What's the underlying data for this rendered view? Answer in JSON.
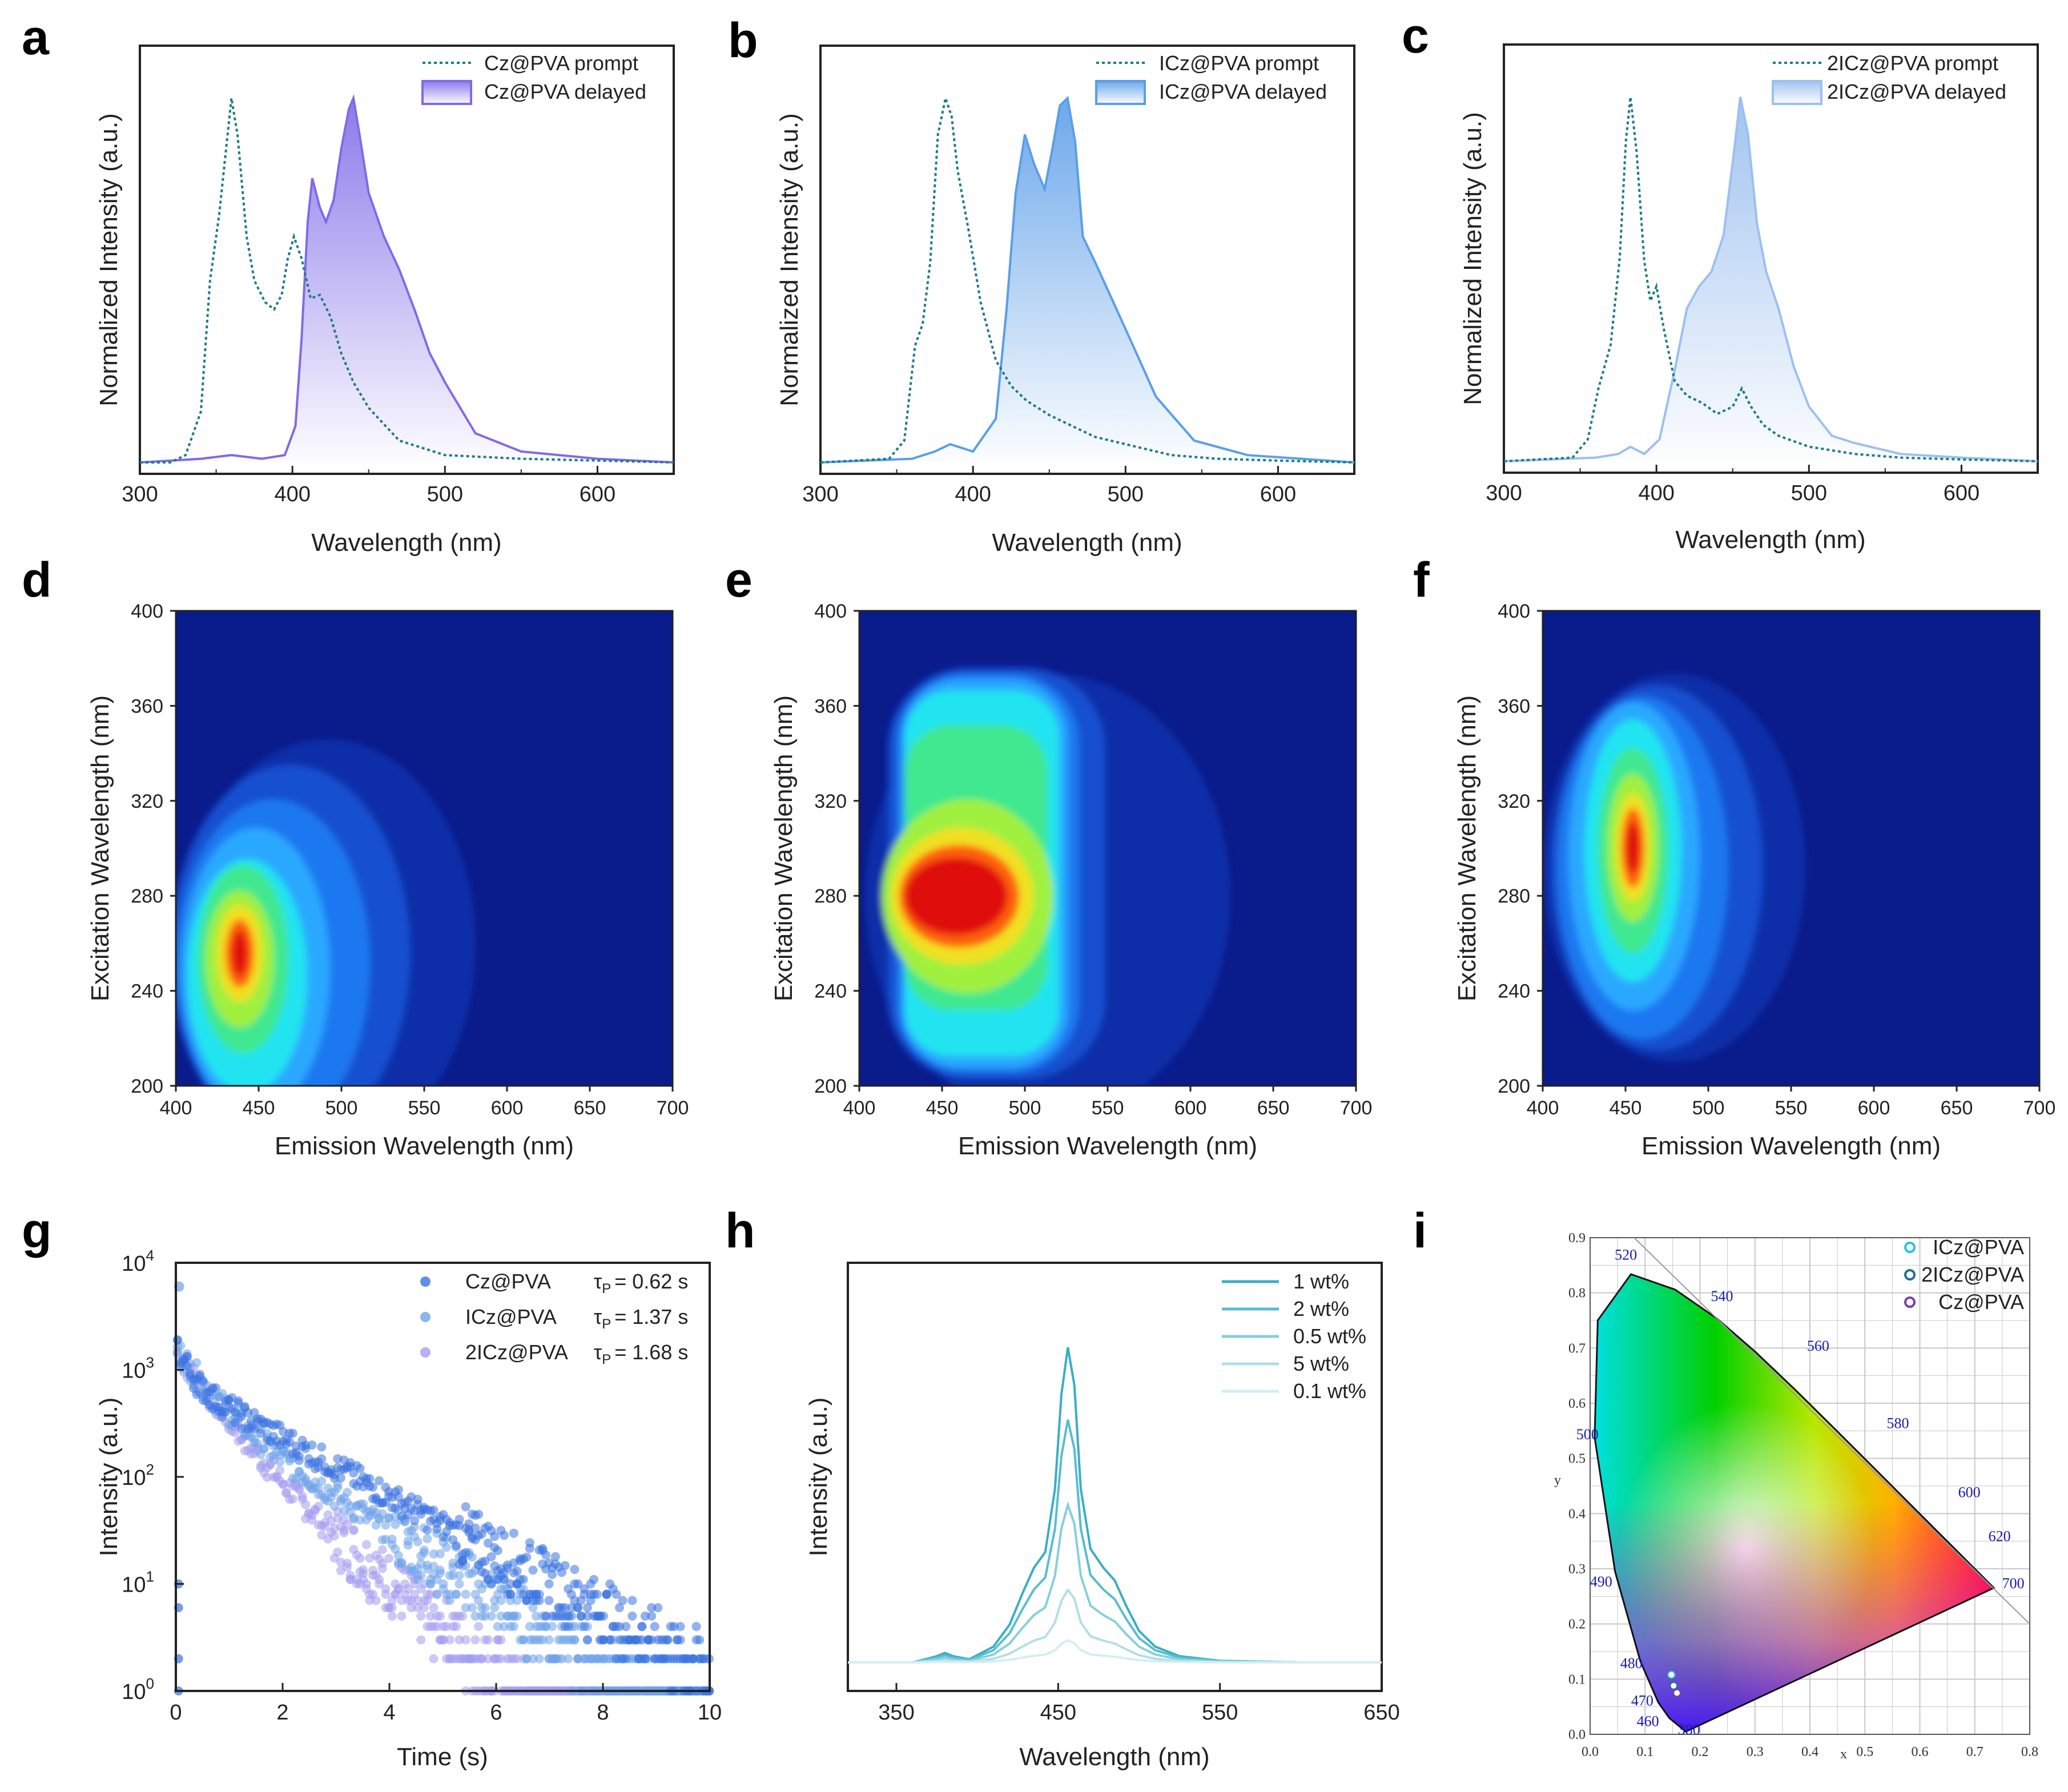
{
  "figure_panels": [
    "a",
    "b",
    "c",
    "d",
    "e",
    "f",
    "g",
    "h",
    "i"
  ],
  "colors": {
    "prompt": "#1e7b86",
    "cz": "#7f6be8",
    "icz": "#5b9ee8",
    "twoicz": "#9cc0ef",
    "map_bg": "#0a1b8c",
    "decay_cz": "#3a73e0",
    "decay_icz": "#6fa3ea",
    "decay_2icz": "#a39cf0",
    "h_series": [
      "#3aaec4",
      "#58bdd0",
      "#86cfdc",
      "#b0dfe8",
      "#d3eef3"
    ]
  },
  "chart_data": [
    {
      "panel": "a",
      "type": "area",
      "xlabel": "Wavelength (nm)",
      "ylabel": "Normalized Intensity (a.u.)",
      "xlim": [
        300,
        650
      ],
      "xticks": [
        300,
        400,
        500,
        600
      ],
      "ylim": [
        0,
        1.05
      ],
      "series": [
        {
          "name": "Cz@PVA prompt",
          "style": "dotted",
          "x": [
            300,
            320,
            330,
            340,
            346,
            352,
            357,
            360,
            364,
            370,
            375,
            382,
            388,
            393,
            397,
            401,
            406,
            412,
            418,
            425,
            432,
            440,
            450,
            470,
            500,
            550,
            600,
            650
          ],
          "y": [
            0.0,
            0.0,
            0.02,
            0.14,
            0.5,
            0.68,
            0.88,
            1.0,
            0.9,
            0.62,
            0.5,
            0.44,
            0.42,
            0.46,
            0.56,
            0.62,
            0.56,
            0.45,
            0.46,
            0.4,
            0.3,
            0.22,
            0.15,
            0.06,
            0.02,
            0.01,
            0.005,
            0.0
          ]
        },
        {
          "name": "Cz@PVA delayed",
          "style": "filled",
          "x": [
            300,
            340,
            360,
            380,
            395,
            402,
            406,
            410,
            413,
            418,
            422,
            427,
            432,
            437,
            440,
            444,
            450,
            460,
            470,
            480,
            490,
            500,
            520,
            550,
            600,
            650
          ],
          "y": [
            0.0,
            0.01,
            0.02,
            0.01,
            0.02,
            0.1,
            0.34,
            0.66,
            0.78,
            0.7,
            0.66,
            0.72,
            0.86,
            0.97,
            1.0,
            0.9,
            0.74,
            0.62,
            0.53,
            0.42,
            0.3,
            0.22,
            0.08,
            0.03,
            0.01,
            0.0
          ]
        }
      ]
    },
    {
      "panel": "b",
      "type": "area",
      "xlabel": "Wavelength (nm)",
      "ylabel": "Normalized Intensity (a.u.)",
      "xlim": [
        300,
        650
      ],
      "xticks": [
        300,
        400,
        500,
        600
      ],
      "ylim": [
        0,
        1.05
      ],
      "series": [
        {
          "name": "ICz@PVA prompt",
          "style": "dotted",
          "x": [
            300,
            345,
            355,
            362,
            367,
            372,
            377,
            382,
            386,
            390,
            397,
            405,
            415,
            425,
            435,
            450,
            465,
            480,
            500,
            530,
            560,
            600,
            650
          ],
          "y": [
            0.0,
            0.01,
            0.06,
            0.32,
            0.38,
            0.55,
            0.9,
            1.0,
            0.95,
            0.8,
            0.64,
            0.44,
            0.28,
            0.21,
            0.17,
            0.13,
            0.1,
            0.07,
            0.05,
            0.02,
            0.01,
            0.005,
            0.0
          ]
        },
        {
          "name": "ICz@PVA delayed",
          "style": "filled",
          "x": [
            300,
            360,
            375,
            385,
            400,
            415,
            422,
            428,
            434,
            440,
            447,
            452,
            457,
            462,
            467,
            472,
            480,
            492,
            505,
            520,
            545,
            580,
            650
          ],
          "y": [
            0.0,
            0.01,
            0.03,
            0.05,
            0.03,
            0.12,
            0.42,
            0.74,
            0.9,
            0.82,
            0.75,
            0.86,
            0.98,
            1.0,
            0.88,
            0.62,
            0.55,
            0.44,
            0.32,
            0.18,
            0.06,
            0.02,
            0.0
          ]
        }
      ]
    },
    {
      "panel": "c",
      "type": "area",
      "xlabel": "Wavelength (nm)",
      "ylabel": "Normalized Intensity (a.u.)",
      "xlim": [
        300,
        650
      ],
      "xticks": [
        300,
        400,
        500,
        600
      ],
      "ylim": [
        0,
        1.05
      ],
      "series": [
        {
          "name": "2ICz@PVA prompt",
          "style": "dotted",
          "x": [
            300,
            345,
            355,
            362,
            370,
            376,
            380,
            383,
            387,
            392,
            396,
            400,
            405,
            412,
            420,
            430,
            440,
            450,
            456,
            462,
            470,
            480,
            500,
            530,
            560,
            600,
            650
          ],
          "y": [
            0.0,
            0.01,
            0.06,
            0.2,
            0.32,
            0.56,
            0.88,
            1.0,
            0.85,
            0.55,
            0.44,
            0.48,
            0.36,
            0.22,
            0.18,
            0.16,
            0.13,
            0.15,
            0.2,
            0.15,
            0.1,
            0.07,
            0.04,
            0.02,
            0.01,
            0.005,
            0.0
          ]
        },
        {
          "name": "2ICz@PVA delayed",
          "style": "filled",
          "x": [
            300,
            360,
            375,
            383,
            392,
            402,
            412,
            420,
            428,
            436,
            444,
            450,
            455,
            460,
            466,
            472,
            480,
            490,
            500,
            515,
            530,
            560,
            600,
            650
          ],
          "y": [
            0.0,
            0.01,
            0.02,
            0.04,
            0.02,
            0.06,
            0.25,
            0.42,
            0.48,
            0.52,
            0.62,
            0.82,
            1.0,
            0.9,
            0.65,
            0.52,
            0.42,
            0.26,
            0.15,
            0.07,
            0.05,
            0.02,
            0.01,
            0.0
          ]
        }
      ]
    },
    {
      "panel": "d",
      "type": "heatmap",
      "xlabel": "Emission Wavelength (nm)",
      "ylabel": "Excitation Wavelength (nm)",
      "xlim": [
        400,
        700
      ],
      "xticks": [
        400,
        450,
        500,
        550,
        600,
        650,
        700
      ],
      "ylim": [
        200,
        400
      ],
      "yticks": [
        200,
        240,
        280,
        320,
        360,
        400
      ],
      "peak": {
        "emission": 438,
        "excitation": 256
      }
    },
    {
      "panel": "e",
      "type": "heatmap",
      "xlabel": "Emission Wavelength (nm)",
      "ylabel": "Excitation Wavelength (nm)",
      "xlim": [
        400,
        700
      ],
      "xticks": [
        400,
        450,
        500,
        550,
        600,
        650,
        700
      ],
      "ylim": [
        200,
        400
      ],
      "yticks": [
        200,
        240,
        280,
        320,
        360,
        400
      ],
      "peak": {
        "emission": 455,
        "excitation": 280
      }
    },
    {
      "panel": "f",
      "type": "heatmap",
      "xlabel": "Emission Wavelength (nm)",
      "ylabel": "Excitation Wavelength (nm)",
      "xlim": [
        400,
        700
      ],
      "xticks": [
        400,
        450,
        500,
        550,
        600,
        650,
        700
      ],
      "ylim": [
        200,
        400
      ],
      "yticks": [
        200,
        240,
        280,
        320,
        360,
        400
      ],
      "peak": {
        "emission": 455,
        "excitation": 300
      }
    },
    {
      "panel": "g",
      "type": "scatter",
      "yscale": "log",
      "xlabel": "Time (s)",
      "ylabel": "Intensity (a.u.)",
      "xlim": [
        0,
        10
      ],
      "xticks": [
        0,
        2,
        4,
        6,
        8,
        10
      ],
      "ylim": [
        1,
        10000
      ],
      "yticks": [
        1,
        10,
        100,
        1000,
        10000
      ],
      "ytick_labels": [
        "10",
        "10",
        "10",
        "10",
        "10"
      ],
      "ytick_exps": [
        "0",
        "1",
        "2",
        "3",
        "4"
      ],
      "series": [
        {
          "name": "Cz@PVA",
          "tau_label": "τ",
          "tau_sub": "P",
          "tau_value": "= 0.62 s",
          "tau_s": 0.62,
          "I0": 1800,
          "slow_amp": 800,
          "slow_tau": 1.6
        },
        {
          "name": "ICz@PVA",
          "tau_label": "τ",
          "tau_sub": "P",
          "tau_value": "= 1.37 s",
          "tau_s": 1.37,
          "I0": 1600,
          "slow_amp": 600,
          "slow_tau": 1.35
        },
        {
          "name": "2ICz@PVA",
          "tau_label": "τ",
          "tau_sub": "P",
          "tau_value": "= 1.68 s",
          "tau_s": 1.68,
          "I0": 1500,
          "slow_amp": 350,
          "slow_tau": 1.1
        }
      ]
    },
    {
      "panel": "h",
      "type": "line",
      "xlabel": "Wavelength (nm)",
      "ylabel": "Intensity (a.u.)",
      "xlim": [
        320,
        650
      ],
      "xticks": [
        350,
        450,
        550,
        650
      ],
      "x": [
        320,
        360,
        375,
        380,
        385,
        395,
        410,
        420,
        428,
        435,
        442,
        448,
        452,
        456,
        460,
        464,
        470,
        478,
        485,
        492,
        500,
        510,
        525,
        550,
        600,
        650
      ],
      "shape": [
        0.0,
        0.0,
        0.02,
        0.03,
        0.02,
        0.01,
        0.05,
        0.12,
        0.22,
        0.3,
        0.35,
        0.55,
        0.85,
        1.0,
        0.88,
        0.55,
        0.36,
        0.3,
        0.26,
        0.18,
        0.1,
        0.05,
        0.02,
        0.005,
        0.0,
        0.0
      ],
      "series": [
        {
          "name": "1 wt%",
          "scale": 1.0
        },
        {
          "name": "2 wt%",
          "scale": 0.77
        },
        {
          "name": "0.5 wt%",
          "scale": 0.5
        },
        {
          "name": "5 wt%",
          "scale": 0.23
        },
        {
          "name": "0.1 wt%",
          "scale": 0.07
        }
      ]
    },
    {
      "panel": "i",
      "type": "scatter",
      "subtype": "CIE 1931 chromaticity diagram",
      "xlabel": "x",
      "ylabel": "y",
      "xlim": [
        0,
        0.8
      ],
      "ylim": [
        0,
        0.9
      ],
      "xticks": [
        "0.0",
        "0.1",
        "0.2",
        "0.3",
        "0.4",
        "0.5",
        "0.6",
        "0.7",
        "0.8"
      ],
      "yticks": [
        "0.0",
        "0.1",
        "0.2",
        "0.3",
        "0.4",
        "0.5",
        "0.6",
        "0.7",
        "0.8",
        "0.9"
      ],
      "wavelength_labels": [
        "380",
        "460",
        "470",
        "480",
        "490",
        "500",
        "520",
        "540",
        "560",
        "580",
        "600",
        "620",
        "700"
      ],
      "points": [
        {
          "name": "ICz@PVA",
          "x": 0.148,
          "y": 0.108,
          "color": "#27c3e0"
        },
        {
          "name": "2ICz@PVA",
          "x": 0.152,
          "y": 0.088,
          "color": "#1f6e9e"
        },
        {
          "name": "Cz@PVA",
          "x": 0.158,
          "y": 0.075,
          "color": "#7a3db0"
        }
      ]
    }
  ]
}
